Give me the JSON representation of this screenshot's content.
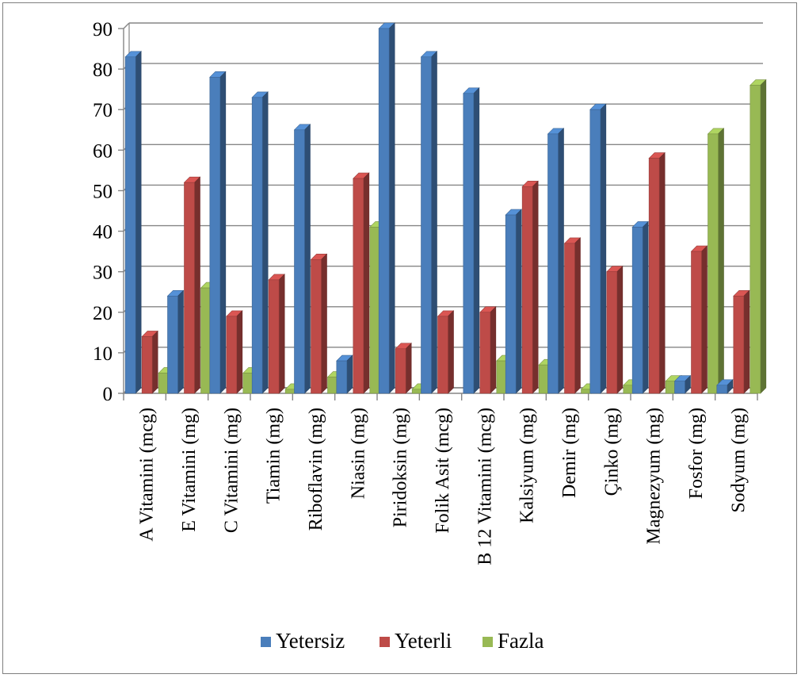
{
  "chart_data": {
    "type": "bar",
    "categories": [
      "A Vitamini (mcg)",
      "E Vitamini (mg)",
      "C Vitamini (mg)",
      "Tiamin (mg)",
      "Riboflavin (mg)",
      "Niasin (mg)",
      "Piridoksin (mg)",
      "Folik Asit (mcg)",
      "B 12 Vitamini (mcg)",
      "Kalsiyum (mg)",
      "Demir (mg)",
      "Çinko (mg)",
      "Magnezyum (mg)",
      "Fosfor (mg)",
      "Sodyum (mg)"
    ],
    "series": [
      {
        "name": "Yetersiz",
        "color": "#4a7ebb",
        "values": [
          83,
          24,
          78,
          73,
          65,
          8,
          90,
          83,
          74,
          44,
          64,
          70,
          41,
          3,
          2
        ]
      },
      {
        "name": "Yeterli",
        "color": "#be4b48",
        "values": [
          14,
          52,
          19,
          28,
          33,
          53,
          11,
          19,
          20,
          51,
          37,
          30,
          58,
          35,
          24
        ]
      },
      {
        "name": "Fazla",
        "color": "#98b954",
        "values": [
          5,
          26,
          5,
          1,
          4,
          41,
          1,
          0,
          8,
          7,
          1,
          2,
          3,
          64,
          76
        ]
      }
    ],
    "ylim": [
      0,
      90
    ],
    "yticks": [
      0,
      10,
      20,
      30,
      40,
      50,
      60,
      70,
      80,
      90
    ],
    "grid": true,
    "legend_position": "bottom",
    "style": "3d-clustered-column"
  }
}
